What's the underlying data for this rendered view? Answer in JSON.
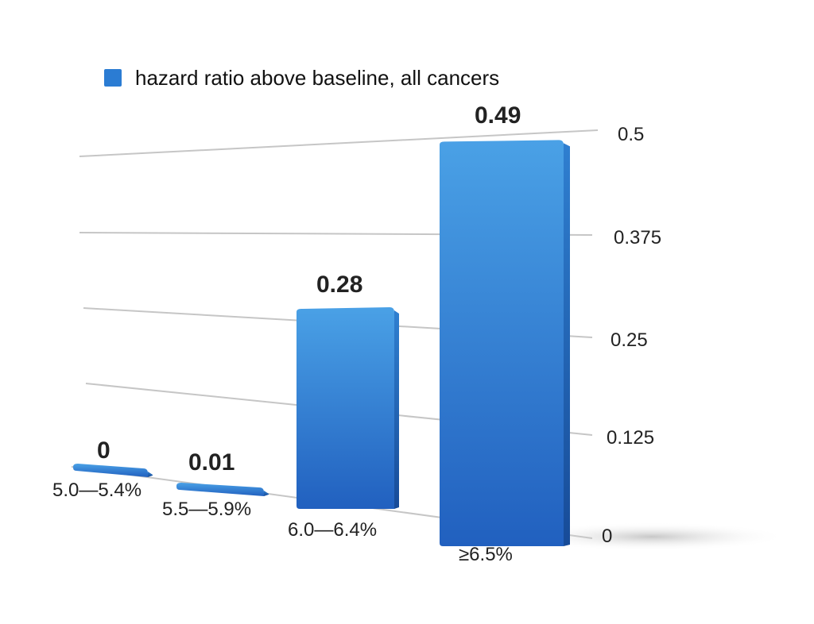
{
  "chart_data": {
    "type": "bar",
    "categories": [
      "5.0—5.4%",
      "5.5—5.9%",
      "6.0—6.4%",
      "≥6.5%"
    ],
    "series": [
      {
        "name": "hazard ratio above baseline, all cancers",
        "values": [
          0,
          0.01,
          0.28,
          0.49
        ]
      }
    ],
    "data_labels": [
      "0",
      "0.01",
      "0.28",
      "0.49"
    ],
    "y_ticks": [
      "0",
      "0.125",
      "0.25",
      "0.375",
      "0.5"
    ],
    "y_tick_values": [
      0,
      0.125,
      0.25,
      0.375,
      0.5
    ],
    "ylim": [
      0,
      0.5
    ],
    "grid": true,
    "legend_position": "top",
    "y_axis_side": "right",
    "perspective": "3d",
    "colors": {
      "bar": "#2a6fc7",
      "bar_light": "#4a9fe3",
      "bar_dark": "#1f5aad",
      "grid": "#c6c6c6",
      "legend_swatch": "#2b7cd3"
    }
  }
}
